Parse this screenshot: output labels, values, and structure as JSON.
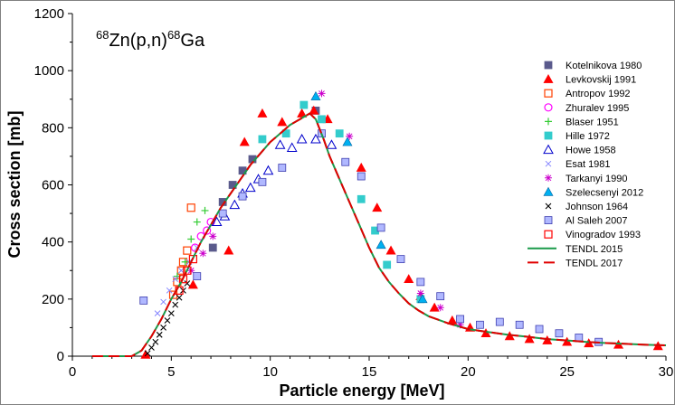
{
  "chart_data": {
    "type": "scatter",
    "title": {
      "prefix": "68",
      "reaction": "Zn(p,n)",
      "suffix": "68",
      "product": "Ga"
    },
    "xlabel": "Particle energy [MeV]",
    "ylabel": "Cross section [mb]",
    "xlim": [
      0,
      30
    ],
    "ylim": [
      0,
      1200
    ],
    "xticks": [
      0,
      5,
      10,
      15,
      20,
      25,
      30
    ],
    "yticks": [
      0,
      200,
      400,
      600,
      800,
      1000,
      1200
    ],
    "legend_position": "right",
    "series": [
      {
        "name": "Kotelnikova 1980",
        "marker": "square-filled",
        "color": "#5a5a8c",
        "points": [
          [
            7.1,
            380
          ],
          [
            7.6,
            540
          ],
          [
            8.1,
            600
          ],
          [
            8.6,
            650
          ],
          [
            9.1,
            690
          ],
          [
            12.3,
            860
          ]
        ]
      },
      {
        "name": "Levkovskij 1991",
        "marker": "triangle-filled",
        "color": "#ff0000",
        "points": [
          [
            3.7,
            5
          ],
          [
            6.1,
            250
          ],
          [
            7.9,
            370
          ],
          [
            8.7,
            750
          ],
          [
            9.6,
            850
          ],
          [
            10.6,
            820
          ],
          [
            11.6,
            850
          ],
          [
            12.2,
            860
          ],
          [
            12.9,
            830
          ],
          [
            14.6,
            660
          ],
          [
            15.4,
            520
          ],
          [
            16.1,
            370
          ],
          [
            17.0,
            270
          ],
          [
            17.6,
            210
          ],
          [
            18.3,
            170
          ],
          [
            19.2,
            125
          ],
          [
            20.1,
            100
          ],
          [
            20.9,
            80
          ],
          [
            22.1,
            70
          ],
          [
            23.1,
            60
          ],
          [
            24.0,
            55
          ],
          [
            25.0,
            50
          ],
          [
            26.1,
            45
          ],
          [
            27.6,
            40
          ],
          [
            29.6,
            35
          ]
        ]
      },
      {
        "name": "Antropov 1992",
        "marker": "square-open",
        "color": "#ff4000",
        "points": [
          [
            5.1,
            215
          ],
          [
            5.3,
            260
          ],
          [
            5.5,
            300
          ],
          [
            5.6,
            330
          ],
          [
            5.8,
            370
          ],
          [
            6.0,
            520
          ]
        ]
      },
      {
        "name": "Zhuralev 1995",
        "marker": "circle-open",
        "color": "#ff00ff",
        "points": [
          [
            6.2,
            380
          ],
          [
            6.5,
            420
          ],
          [
            6.8,
            440
          ],
          [
            7.0,
            470
          ]
        ]
      },
      {
        "name": "Blaser 1951",
        "marker": "plus",
        "color": "#33cc33",
        "points": [
          [
            5.3,
            280
          ],
          [
            5.7,
            330
          ],
          [
            6.0,
            410
          ],
          [
            6.3,
            470
          ],
          [
            6.7,
            510
          ]
        ]
      },
      {
        "name": "Hille 1972",
        "marker": "square-filled",
        "color": "#33cccc",
        "points": [
          [
            9.6,
            760
          ],
          [
            10.8,
            780
          ],
          [
            11.7,
            880
          ],
          [
            12.6,
            830
          ],
          [
            13.5,
            780
          ],
          [
            14.6,
            550
          ],
          [
            15.3,
            440
          ],
          [
            15.9,
            320
          ],
          [
            17.6,
            200
          ]
        ]
      },
      {
        "name": "Howe 1958",
        "marker": "triangle-open",
        "color": "#0000cc",
        "points": [
          [
            7.3,
            470
          ],
          [
            7.7,
            490
          ],
          [
            8.2,
            530
          ],
          [
            8.6,
            570
          ],
          [
            9.0,
            590
          ],
          [
            9.4,
            620
          ],
          [
            9.9,
            650
          ],
          [
            10.5,
            740
          ],
          [
            11.1,
            730
          ],
          [
            11.6,
            760
          ],
          [
            12.3,
            760
          ],
          [
            13.1,
            740
          ]
        ]
      },
      {
        "name": "Esat 1981",
        "marker": "x-small",
        "color": "#8080ff",
        "points": [
          [
            4.3,
            150
          ],
          [
            4.6,
            190
          ],
          [
            4.9,
            230
          ],
          [
            5.2,
            270
          ],
          [
            5.5,
            300
          ],
          [
            5.9,
            330
          ],
          [
            6.3,
            380
          ]
        ]
      },
      {
        "name": "Tarkanyi 1990",
        "marker": "asterisk",
        "color": "#cc00cc",
        "points": [
          [
            6.0,
            300
          ],
          [
            6.6,
            360
          ],
          [
            7.1,
            420
          ],
          [
            12.6,
            920
          ],
          [
            14.0,
            770
          ],
          [
            17.6,
            220
          ],
          [
            18.6,
            170
          ],
          [
            19.6,
            110
          ]
        ]
      },
      {
        "name": "Szelecsenyi 2012",
        "marker": "triangle-filled",
        "color": "#00b0f0",
        "points": [
          [
            12.3,
            910
          ],
          [
            13.9,
            750
          ],
          [
            15.6,
            390
          ],
          [
            17.7,
            200
          ]
        ]
      },
      {
        "name": "Johnson 1964",
        "marker": "x",
        "color": "#000000",
        "points": [
          [
            3.8,
            10
          ],
          [
            4.0,
            30
          ],
          [
            4.2,
            50
          ],
          [
            4.4,
            75
          ],
          [
            4.6,
            100
          ],
          [
            4.8,
            125
          ],
          [
            5.0,
            150
          ],
          [
            5.2,
            180
          ],
          [
            5.4,
            205
          ],
          [
            5.6,
            230
          ],
          [
            5.8,
            255
          ]
        ]
      },
      {
        "name": "Al Saleh 2007",
        "marker": "square-filled",
        "color": "#b0b8ff",
        "points": [
          [
            3.6,
            195
          ],
          [
            6.3,
            280
          ],
          [
            7.6,
            500
          ],
          [
            8.6,
            560
          ],
          [
            9.6,
            610
          ],
          [
            10.6,
            660
          ],
          [
            12.6,
            780
          ],
          [
            13.8,
            680
          ],
          [
            14.6,
            630
          ],
          [
            15.6,
            450
          ],
          [
            16.6,
            340
          ],
          [
            17.6,
            260
          ],
          [
            18.6,
            210
          ],
          [
            19.6,
            130
          ],
          [
            20.6,
            110
          ],
          [
            21.6,
            120
          ],
          [
            22.6,
            110
          ],
          [
            23.6,
            95
          ],
          [
            24.6,
            80
          ],
          [
            25.6,
            65
          ],
          [
            26.6,
            50
          ]
        ]
      },
      {
        "name": "Vinogradov 1993",
        "marker": "square-open",
        "color": "#ff0000",
        "points": [
          [
            5.4,
            230
          ],
          [
            5.6,
            270
          ],
          [
            5.8,
            300
          ],
          [
            6.1,
            340
          ]
        ]
      },
      {
        "name": "TENDL 2015",
        "marker": "line",
        "color": "#1a9a4a",
        "points": [
          [
            1,
            0
          ],
          [
            3,
            0
          ],
          [
            3.5,
            20
          ],
          [
            4,
            70
          ],
          [
            4.5,
            130
          ],
          [
            5,
            200
          ],
          [
            5.5,
            260
          ],
          [
            6,
            330
          ],
          [
            6.5,
            400
          ],
          [
            7,
            460
          ],
          [
            7.5,
            520
          ],
          [
            8,
            570
          ],
          [
            8.5,
            620
          ],
          [
            9,
            670
          ],
          [
            9.5,
            710
          ],
          [
            10,
            750
          ],
          [
            10.5,
            780
          ],
          [
            11,
            810
          ],
          [
            11.5,
            830
          ],
          [
            12,
            850
          ],
          [
            12.3,
            830
          ],
          [
            12.7,
            760
          ],
          [
            13,
            700
          ],
          [
            13.5,
            620
          ],
          [
            14,
            540
          ],
          [
            14.5,
            460
          ],
          [
            15,
            380
          ],
          [
            15.5,
            310
          ],
          [
            16,
            260
          ],
          [
            16.5,
            220
          ],
          [
            17,
            185
          ],
          [
            17.5,
            160
          ],
          [
            18,
            140
          ],
          [
            19,
            115
          ],
          [
            20,
            95
          ],
          [
            21,
            85
          ],
          [
            22,
            75
          ],
          [
            23,
            68
          ],
          [
            24,
            60
          ],
          [
            25,
            55
          ],
          [
            26,
            50
          ],
          [
            27,
            46
          ],
          [
            28,
            43
          ],
          [
            29,
            40
          ],
          [
            30,
            38
          ]
        ]
      },
      {
        "name": "TENDL 2017",
        "marker": "dashed-line",
        "color": "#e00000",
        "points": [
          [
            1,
            0
          ],
          [
            3,
            0
          ],
          [
            3.5,
            20
          ],
          [
            4,
            70
          ],
          [
            4.5,
            130
          ],
          [
            5,
            200
          ],
          [
            5.5,
            260
          ],
          [
            6,
            330
          ],
          [
            6.5,
            400
          ],
          [
            7,
            460
          ],
          [
            7.5,
            520
          ],
          [
            8,
            570
          ],
          [
            8.5,
            620
          ],
          [
            9,
            670
          ],
          [
            9.5,
            710
          ],
          [
            10,
            750
          ],
          [
            10.5,
            780
          ],
          [
            11,
            810
          ],
          [
            11.5,
            830
          ],
          [
            12,
            850
          ],
          [
            12.3,
            830
          ],
          [
            12.7,
            760
          ],
          [
            13,
            700
          ],
          [
            13.5,
            620
          ],
          [
            14,
            540
          ],
          [
            14.5,
            460
          ],
          [
            15,
            380
          ],
          [
            15.5,
            310
          ],
          [
            16,
            260
          ],
          [
            16.5,
            220
          ],
          [
            17,
            185
          ],
          [
            17.5,
            160
          ],
          [
            18,
            140
          ],
          [
            19,
            115
          ],
          [
            20,
            95
          ],
          [
            21,
            85
          ],
          [
            22,
            75
          ],
          [
            23,
            68
          ],
          [
            24,
            60
          ],
          [
            25,
            55
          ],
          [
            26,
            50
          ],
          [
            27,
            46
          ],
          [
            28,
            43
          ],
          [
            29,
            40
          ],
          [
            30,
            38
          ]
        ]
      }
    ]
  }
}
